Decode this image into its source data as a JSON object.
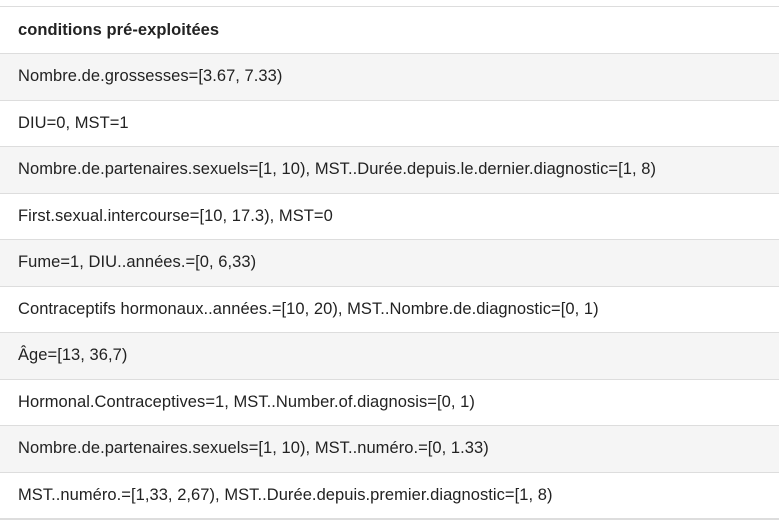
{
  "table": {
    "header": "conditions pré-exploitées",
    "rows": [
      "Nombre.de.grossesses=[3.67, 7.33)",
      "DIU=0, MST=1",
      "Nombre.de.partenaires.sexuels=[1, 10), MST..Durée.depuis.le.dernier.diagnostic=[1, 8)",
      "First.sexual.intercourse=[10, 17.3), MST=0",
      "Fume=1, DIU..années.=[0, 6,33)",
      "Contraceptifs hormonaux..années.=[10, 20), MST..Nombre.de.diagnostic=[0, 1)",
      "Âge=[13, 36,7)",
      "Hormonal.Contraceptives=1, MST..Number.of.diagnosis=[0, 1)",
      "Nombre.de.partenaires.sexuels=[1, 10), MST..numéro.=[0, 1.33)",
      "MST..numéro.=[1,33, 2,67), MST..Durée.depuis.premier.diagnostic=[1, 8)"
    ]
  }
}
